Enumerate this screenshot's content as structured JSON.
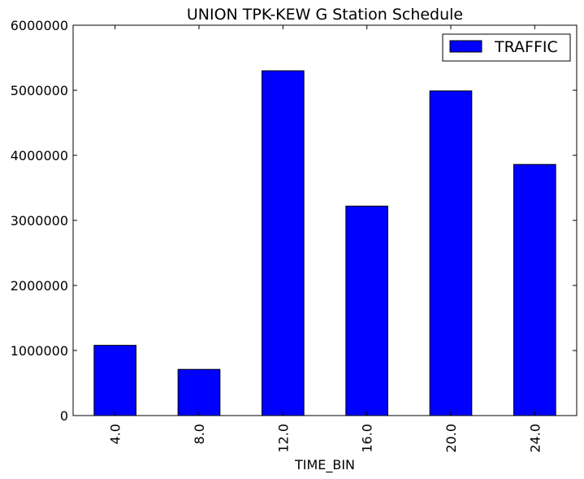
{
  "chart_data": {
    "type": "bar",
    "title": "UNION TPK-KEW G Station Schedule",
    "xlabel": "TIME_BIN",
    "ylabel": "",
    "categories": [
      "4.0",
      "8.0",
      "12.0",
      "16.0",
      "20.0",
      "24.0"
    ],
    "series": [
      {
        "name": "TRAFFIC",
        "color": "#0000ff",
        "values": [
          1080000,
          710000,
          5300000,
          3220000,
          4990000,
          3860000
        ]
      }
    ],
    "ylim": [
      0,
      6000000
    ],
    "yticks": [
      "0",
      "1000000",
      "2000000",
      "3000000",
      "4000000",
      "5000000",
      "6000000"
    ],
    "ytick_values": [
      0,
      1000000,
      2000000,
      3000000,
      4000000,
      5000000,
      6000000
    ],
    "legend": {
      "position": "top-right",
      "labels": [
        "TRAFFIC"
      ]
    },
    "grid": false
  }
}
